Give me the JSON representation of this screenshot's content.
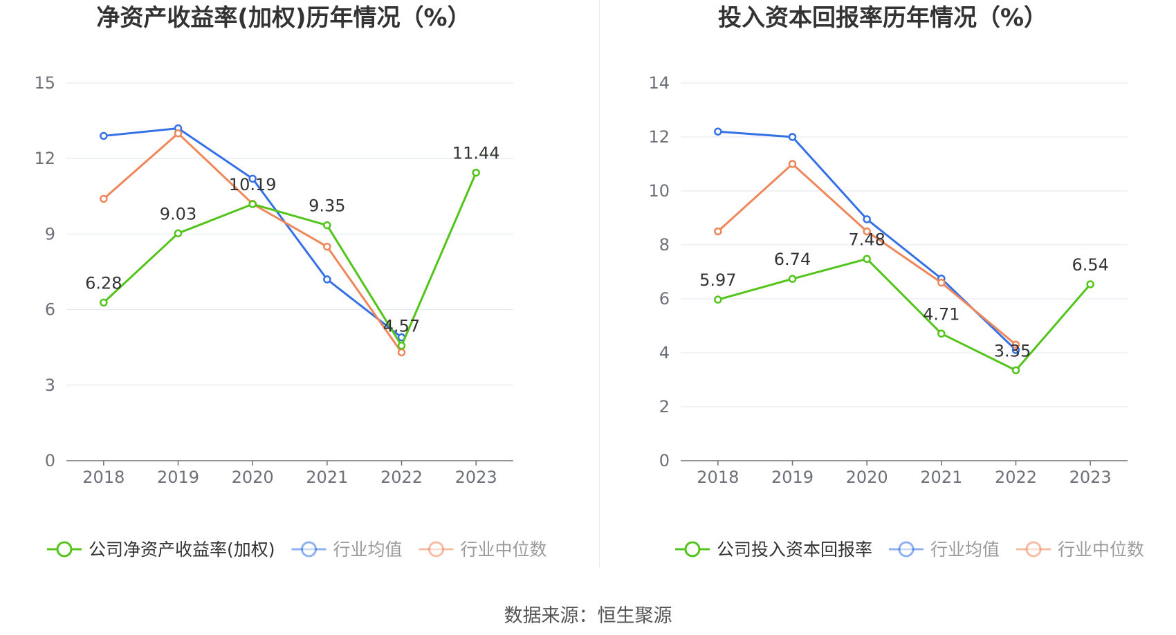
{
  "source_text": "数据来源：恒生聚源",
  "chart_data": [
    {
      "type": "line",
      "title": "净资产收益率(加权)历年情况（%）",
      "categories": [
        "2018",
        "2019",
        "2020",
        "2021",
        "2022",
        "2023"
      ],
      "ylim": [
        0,
        15
      ],
      "yticks": [
        0,
        3,
        6,
        9,
        12,
        15
      ],
      "grid": true,
      "legend_position": "bottom",
      "series": [
        {
          "name": "公司净资产收益率(加权)",
          "color": "#52c41a",
          "values": [
            6.28,
            9.03,
            10.19,
            9.35,
            4.57,
            11.44
          ],
          "labels": [
            "6.28",
            "9.03",
            "10.19",
            "9.35",
            "4.57",
            "11.44"
          ],
          "legend_dim": false
        },
        {
          "name": "行业均值",
          "color": "#3470e6",
          "values": [
            12.9,
            13.2,
            11.2,
            7.2,
            4.9,
            null
          ],
          "legend_dim": true
        },
        {
          "name": "行业中位数",
          "color": "#f0875a",
          "values": [
            10.4,
            13.0,
            10.2,
            8.5,
            4.3,
            null
          ],
          "legend_dim": true
        }
      ]
    },
    {
      "type": "line",
      "title": "投入资本回报率历年情况（%）",
      "categories": [
        "2018",
        "2019",
        "2020",
        "2021",
        "2022",
        "2023"
      ],
      "ylim": [
        0,
        14
      ],
      "yticks": [
        0,
        2,
        4,
        6,
        8,
        10,
        12,
        14
      ],
      "grid": true,
      "legend_position": "bottom",
      "series": [
        {
          "name": "公司投入资本回报率",
          "color": "#52c41a",
          "values": [
            5.97,
            6.74,
            7.48,
            4.71,
            3.35,
            6.54
          ],
          "labels": [
            "5.97",
            "6.74",
            "7.48",
            "4.71",
            "3.35",
            "6.54"
          ],
          "legend_dim": false
        },
        {
          "name": "行业均值",
          "color": "#3470e6",
          "values": [
            12.2,
            12.0,
            8.95,
            6.75,
            4.1,
            null
          ],
          "legend_dim": true
        },
        {
          "name": "行业中位数",
          "color": "#f0875a",
          "values": [
            8.5,
            11.0,
            8.5,
            6.6,
            4.3,
            null
          ],
          "legend_dim": true
        }
      ]
    }
  ]
}
